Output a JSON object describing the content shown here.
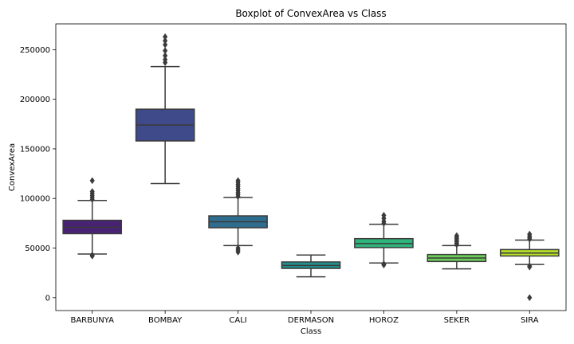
{
  "chart_data": {
    "type": "box",
    "title": "Boxplot of ConvexArea vs Class",
    "xlabel": "Class",
    "ylabel": "ConvexArea",
    "ylim": [
      -13000,
      276000
    ],
    "yticks": [
      0,
      50000,
      100000,
      150000,
      200000,
      250000
    ],
    "ytick_labels": [
      "0",
      "50000",
      "100000",
      "150000",
      "200000",
      "250000"
    ],
    "grid": false,
    "categories": [
      "BARBUNYA",
      "BOMBAY",
      "CALI",
      "DERMASON",
      "HOROZ",
      "SEKER",
      "SIRA"
    ],
    "colors": [
      "#482374",
      "#3e4a89",
      "#2f6d8e",
      "#21908c",
      "#2fb47c",
      "#6ccd5a",
      "#b5de2b"
    ],
    "boxes": [
      {
        "category": "BARBUNYA",
        "whisker_low": 44000,
        "q1": 64500,
        "median": 71000,
        "q3": 78000,
        "whisker_high": 98000,
        "outliers": [
          42000,
          43000,
          99000,
          101000,
          103000,
          105000,
          107000,
          118000
        ]
      },
      {
        "category": "BOMBAY",
        "whisker_low": 115000,
        "q1": 158000,
        "median": 174000,
        "q3": 190000,
        "whisker_high": 233000,
        "outliers": [
          237000,
          240000,
          244000,
          249000,
          255000,
          259000,
          263000
        ]
      },
      {
        "category": "CALI",
        "whisker_low": 52500,
        "q1": 70500,
        "median": 76500,
        "q3": 82500,
        "whisker_high": 101000,
        "outliers": [
          46000,
          48000,
          50000,
          102000,
          104000,
          106000,
          108000,
          110000,
          112000,
          114000,
          116000,
          118000
        ]
      },
      {
        "category": "DERMASON",
        "whisker_low": 21000,
        "q1": 29500,
        "median": 32500,
        "q3": 36000,
        "whisker_high": 43000,
        "outliers": []
      },
      {
        "category": "HOROZ",
        "whisker_low": 35000,
        "q1": 50500,
        "median": 54500,
        "q3": 59500,
        "whisker_high": 74000,
        "outliers": [
          33000,
          34000,
          75000,
          77000,
          80000,
          83000
        ]
      },
      {
        "category": "SEKER",
        "whisker_low": 29000,
        "q1": 36500,
        "median": 40000,
        "q3": 43500,
        "whisker_high": 52500,
        "outliers": [
          53500,
          55000,
          56500,
          58000,
          59500,
          61000,
          62500
        ]
      },
      {
        "category": "SIRA",
        "whisker_low": 33500,
        "q1": 42000,
        "median": 45000,
        "q3": 48500,
        "whisker_high": 58000,
        "outliers": [
          0,
          31000,
          32000,
          59000,
          60500,
          62000,
          64000
        ]
      }
    ]
  }
}
